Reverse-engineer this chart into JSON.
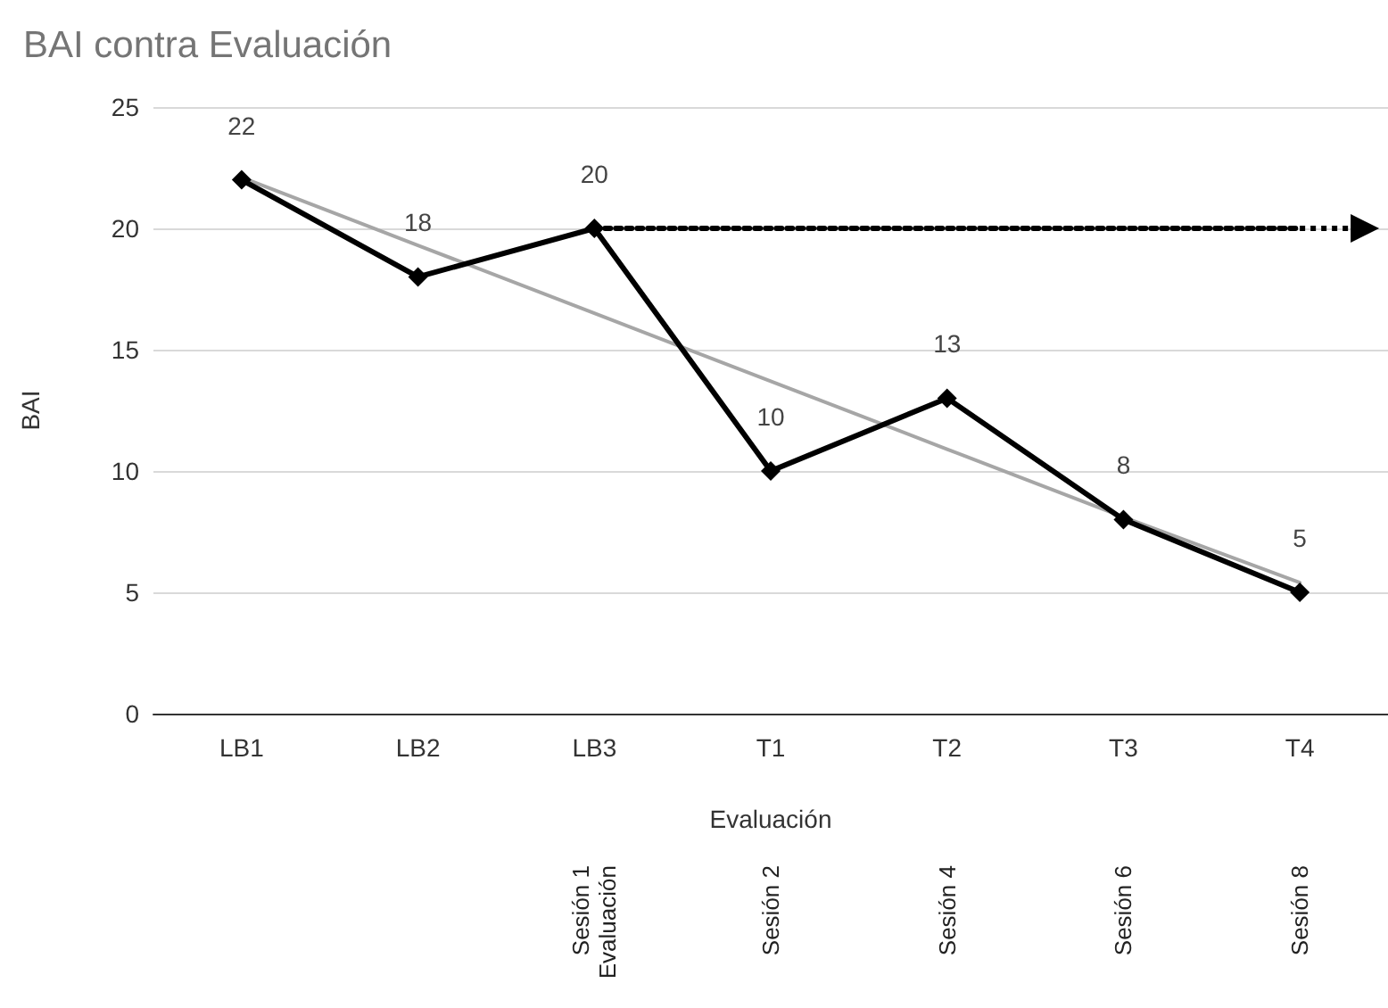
{
  "chart_data": {
    "type": "line",
    "title": "BAI contra Evaluación",
    "xlabel": "Evaluación",
    "ylabel": "BAI",
    "categories": [
      "LB1",
      "LB2",
      "LB3",
      "T1",
      "T2",
      "T3",
      "T4"
    ],
    "series": [
      {
        "color": "#000000",
        "values": [
          22,
          18,
          20,
          10,
          13,
          8,
          5
        ],
        "marker": "diamond",
        "line_style": "solid",
        "data_labels": true
      },
      {
        "color": "#a6a6a6",
        "values": [
          22.1,
          19.3,
          16.5,
          13.7,
          10.9,
          8.1,
          5.4
        ],
        "marker": "none",
        "line_style": "solid"
      },
      {
        "color": "#000000",
        "values": [
          null,
          null,
          20,
          20,
          20,
          20,
          20
        ],
        "marker": "none",
        "line_style": "dotted"
      }
    ],
    "ylim": [
      0,
      25
    ],
    "yticks": [
      0,
      5,
      10,
      15,
      20,
      25
    ],
    "grid": "y",
    "annotations": [
      "Sesión 1\nEvaluación",
      "Sesión 2",
      "Sesión 4",
      "Sesión 6",
      "Sesión 8"
    ]
  }
}
